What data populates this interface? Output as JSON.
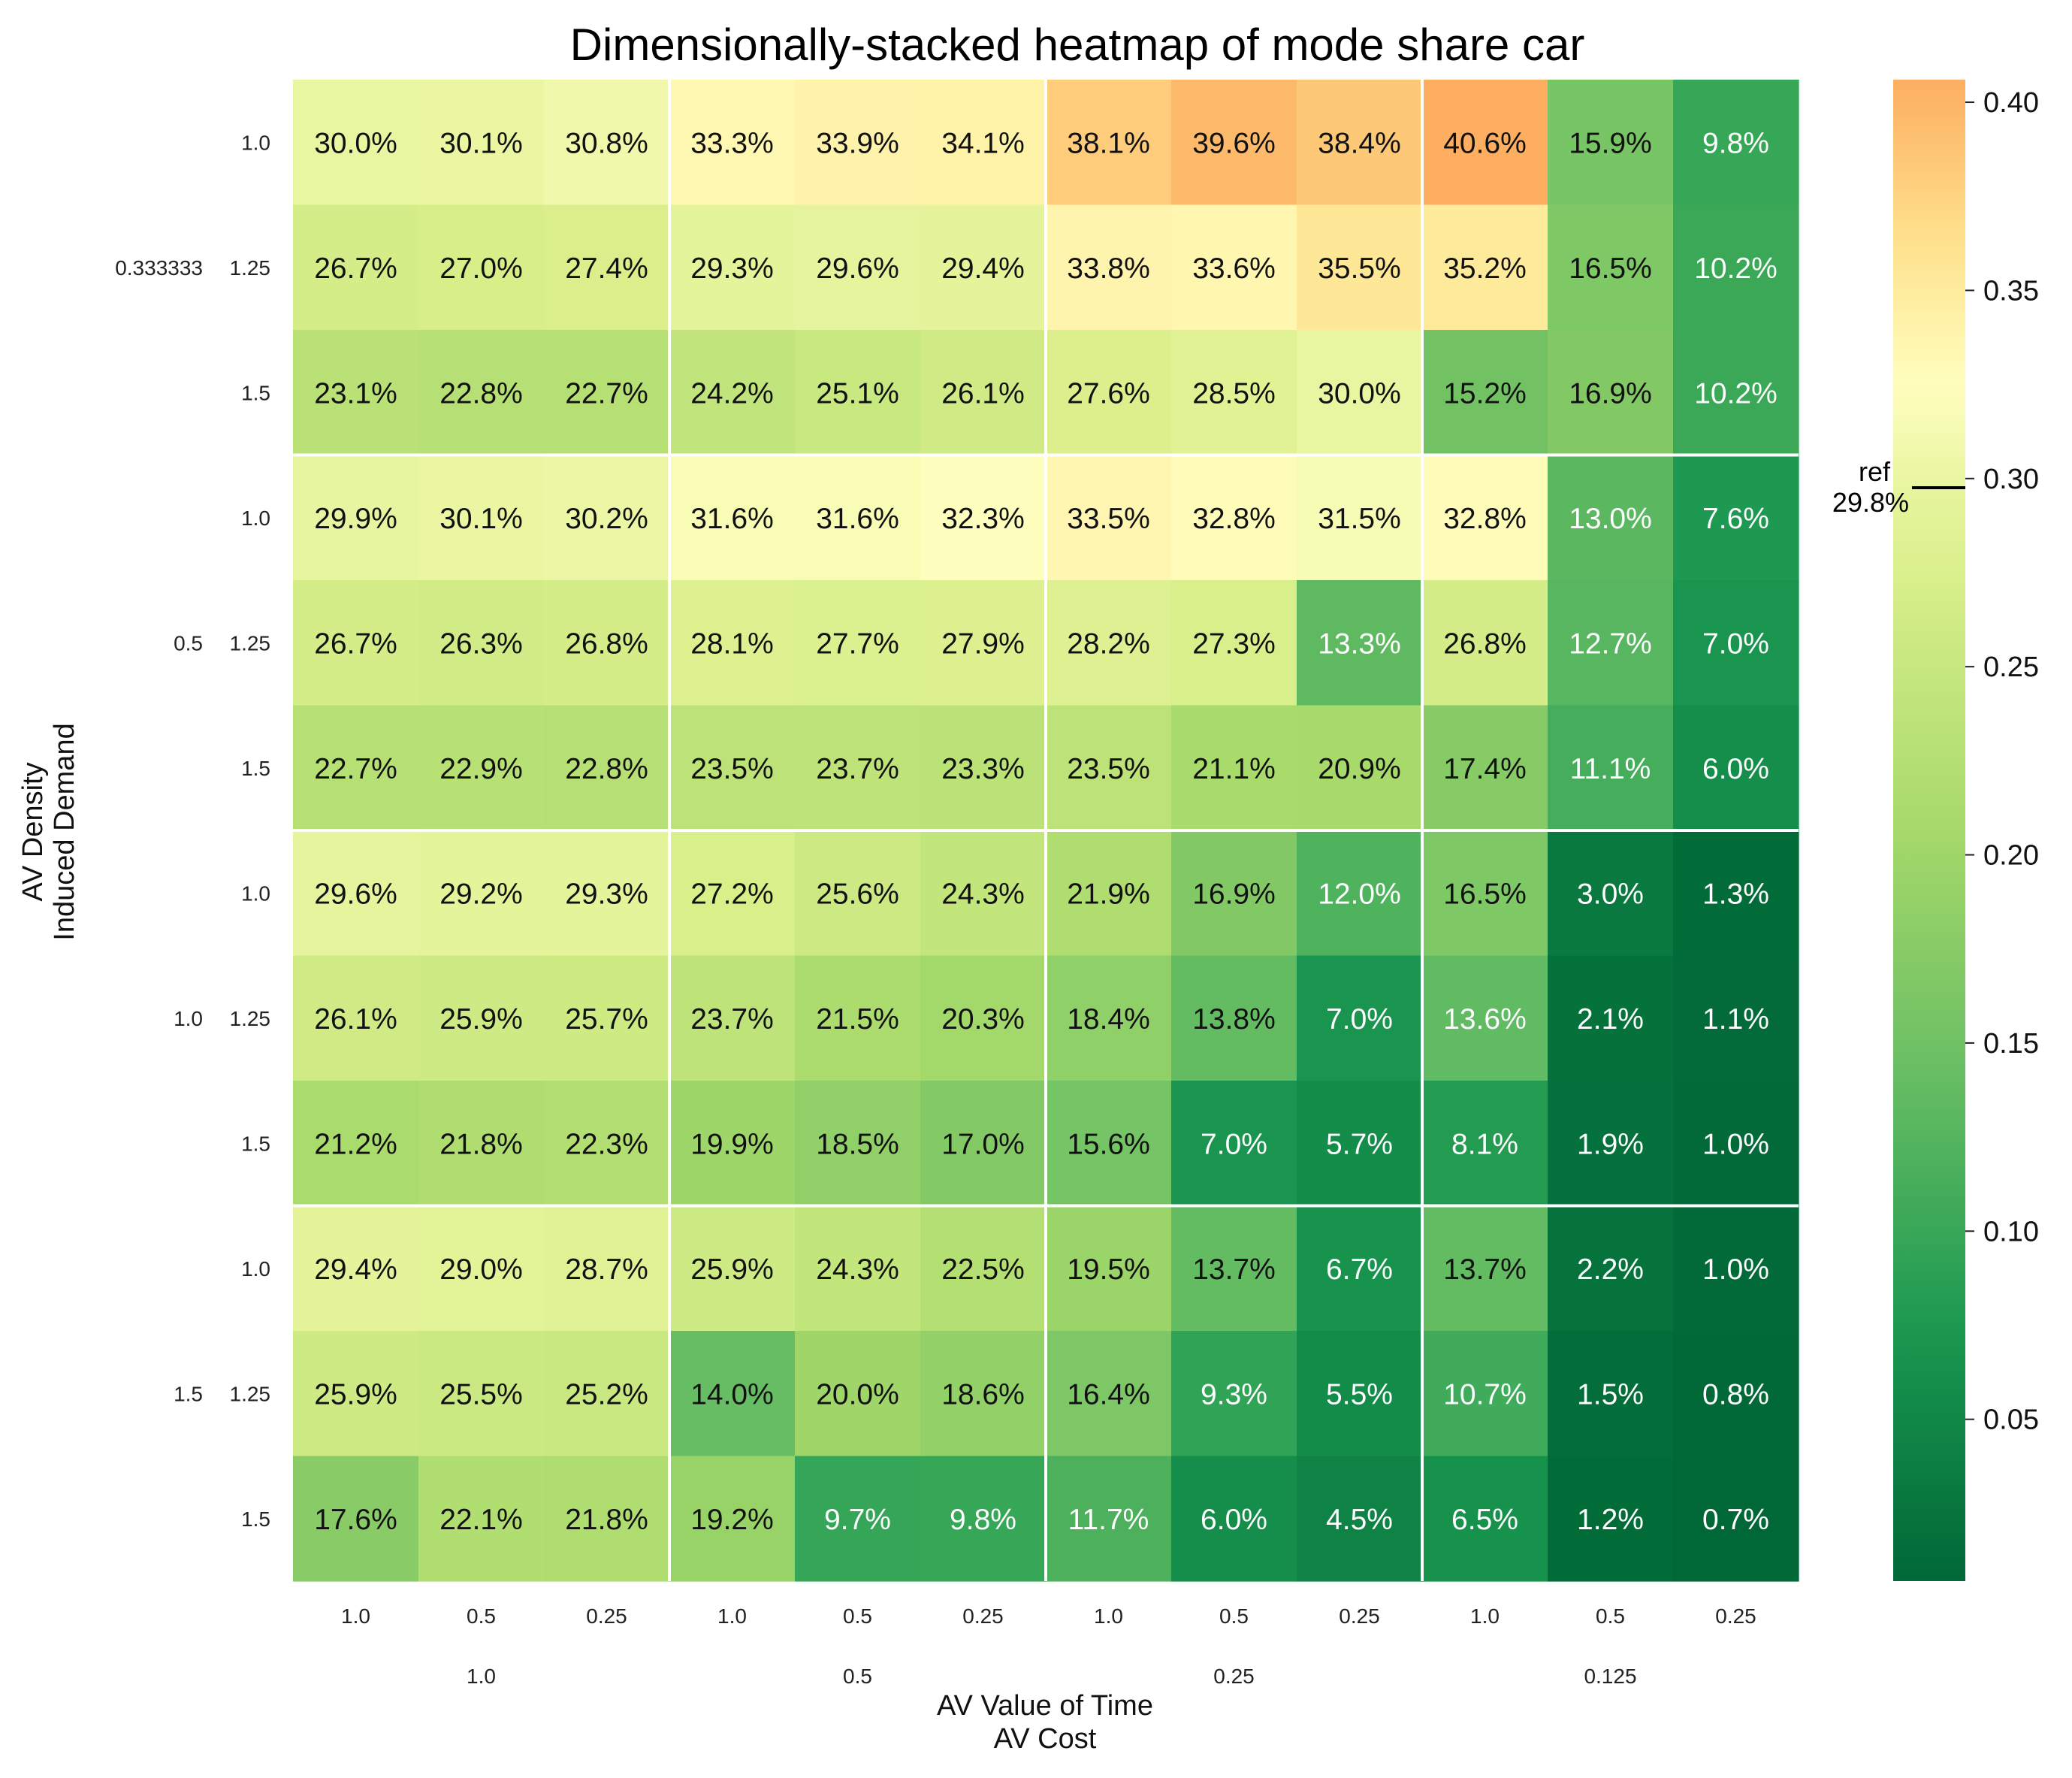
{
  "chart_data": {
    "type": "heatmap",
    "title": "Dimensionally-stacked heatmap of mode share car",
    "ylabel_lines": [
      "AV Density",
      "Induced Demand"
    ],
    "xlabel_lines": [
      "AV Value of Time",
      "AV Cost"
    ],
    "y_outer_levels": [
      "0.333333",
      "0.5",
      "1.0",
      "1.5"
    ],
    "y_inner_levels": [
      "1.0",
      "1.25",
      "1.5"
    ],
    "x_outer_levels": [
      "1.0",
      "0.5",
      "0.25",
      "0.125"
    ],
    "x_inner_levels": [
      "1.0",
      "0.5",
      "0.25"
    ],
    "values": [
      [
        0.3,
        0.301,
        0.308,
        0.333,
        0.339,
        0.341,
        0.381,
        0.396,
        0.384,
        0.406,
        0.159,
        0.098
      ],
      [
        0.267,
        0.27,
        0.274,
        0.293,
        0.296,
        0.294,
        0.338,
        0.336,
        0.355,
        0.352,
        0.165,
        0.102
      ],
      [
        0.231,
        0.228,
        0.227,
        0.242,
        0.251,
        0.261,
        0.276,
        0.285,
        0.3,
        0.152,
        0.169,
        0.102
      ],
      [
        0.299,
        0.301,
        0.302,
        0.316,
        0.316,
        0.323,
        0.335,
        0.328,
        0.315,
        0.328,
        0.13,
        0.076
      ],
      [
        0.267,
        0.263,
        0.268,
        0.281,
        0.277,
        0.279,
        0.282,
        0.273,
        0.133,
        0.268,
        0.127,
        0.07
      ],
      [
        0.227,
        0.229,
        0.228,
        0.235,
        0.237,
        0.233,
        0.235,
        0.211,
        0.209,
        0.174,
        0.111,
        0.06
      ],
      [
        0.296,
        0.292,
        0.293,
        0.272,
        0.256,
        0.243,
        0.219,
        0.169,
        0.12,
        0.165,
        0.03,
        0.013
      ],
      [
        0.261,
        0.259,
        0.257,
        0.237,
        0.215,
        0.203,
        0.184,
        0.138,
        0.07,
        0.136,
        0.021,
        0.011
      ],
      [
        0.212,
        0.218,
        0.223,
        0.199,
        0.185,
        0.17,
        0.156,
        0.07,
        0.057,
        0.081,
        0.019,
        0.01
      ],
      [
        0.294,
        0.29,
        0.287,
        0.259,
        0.243,
        0.225,
        0.195,
        0.137,
        0.067,
        0.137,
        0.022,
        0.01
      ],
      [
        0.259,
        0.255,
        0.252,
        0.14,
        0.2,
        0.186,
        0.164,
        0.093,
        0.055,
        0.107,
        0.015,
        0.008
      ],
      [
        0.176,
        0.221,
        0.218,
        0.192,
        0.097,
        0.098,
        0.117,
        0.06,
        0.045,
        0.065,
        0.012,
        0.007
      ]
    ],
    "cell_labels": [
      [
        "30.0%",
        "30.1%",
        "30.8%",
        "33.3%",
        "33.9%",
        "34.1%",
        "38.1%",
        "39.6%",
        "38.4%",
        "40.6%",
        "15.9%",
        "9.8%"
      ],
      [
        "26.7%",
        "27.0%",
        "27.4%",
        "29.3%",
        "29.6%",
        "29.4%",
        "33.8%",
        "33.6%",
        "35.5%",
        "35.2%",
        "16.5%",
        "10.2%"
      ],
      [
        "23.1%",
        "22.8%",
        "22.7%",
        "24.2%",
        "25.1%",
        "26.1%",
        "27.6%",
        "28.5%",
        "30.0%",
        "15.2%",
        "16.9%",
        "10.2%"
      ],
      [
        "29.9%",
        "30.1%",
        "30.2%",
        "31.6%",
        "31.6%",
        "32.3%",
        "33.5%",
        "32.8%",
        "31.5%",
        "32.8%",
        "13.0%",
        "7.6%"
      ],
      [
        "26.7%",
        "26.3%",
        "26.8%",
        "28.1%",
        "27.7%",
        "27.9%",
        "28.2%",
        "27.3%",
        "13.3%",
        "26.8%",
        "12.7%",
        "7.0%"
      ],
      [
        "22.7%",
        "22.9%",
        "22.8%",
        "23.5%",
        "23.7%",
        "23.3%",
        "23.5%",
        "21.1%",
        "20.9%",
        "17.4%",
        "11.1%",
        "6.0%"
      ],
      [
        "29.6%",
        "29.2%",
        "29.3%",
        "27.2%",
        "25.6%",
        "24.3%",
        "21.9%",
        "16.9%",
        "12.0%",
        "16.5%",
        "3.0%",
        "1.3%"
      ],
      [
        "26.1%",
        "25.9%",
        "25.7%",
        "23.7%",
        "21.5%",
        "20.3%",
        "18.4%",
        "13.8%",
        "7.0%",
        "13.6%",
        "2.1%",
        "1.1%"
      ],
      [
        "21.2%",
        "21.8%",
        "22.3%",
        "19.9%",
        "18.5%",
        "17.0%",
        "15.6%",
        "7.0%",
        "5.7%",
        "8.1%",
        "1.9%",
        "1.0%"
      ],
      [
        "29.4%",
        "29.0%",
        "28.7%",
        "25.9%",
        "24.3%",
        "22.5%",
        "19.5%",
        "13.7%",
        "6.7%",
        "13.7%",
        "2.2%",
        "1.0%"
      ],
      [
        "25.9%",
        "25.5%",
        "25.2%",
        "14.0%",
        "20.0%",
        "18.6%",
        "16.4%",
        "9.3%",
        "5.5%",
        "10.7%",
        "1.5%",
        "0.8%"
      ],
      [
        "17.6%",
        "22.1%",
        "21.8%",
        "19.2%",
        "9.7%",
        "9.8%",
        "11.7%",
        "6.0%",
        "4.5%",
        "6.5%",
        "1.2%",
        "0.7%"
      ]
    ],
    "colormap": "RdYlGn_r",
    "colormap_stops": [
      "#006837",
      "#1a9850",
      "#66bd63",
      "#a6d96a",
      "#d9ef8b",
      "#ffffbf",
      "#fee08b",
      "#fdae61"
    ],
    "vmin": 0.007,
    "vmax": 0.406,
    "center": 0.298,
    "colorbar_ticks": [
      "0.05",
      "0.10",
      "0.15",
      "0.20",
      "0.25",
      "0.30",
      "0.35",
      "0.40"
    ],
    "colorbar_tick_values": [
      0.05,
      0.1,
      0.15,
      0.2,
      0.25,
      0.3,
      0.35,
      0.4
    ],
    "reference": {
      "label": "ref",
      "value_text": "29.8%",
      "value": 0.298
    },
    "grid": false,
    "group_separator_color": "#ffffff"
  }
}
